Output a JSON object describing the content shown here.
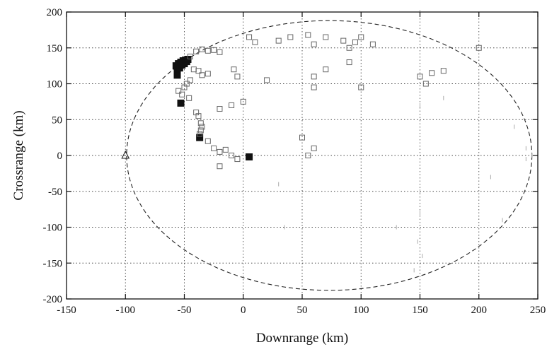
{
  "chart_data": {
    "type": "scatter",
    "xlabel": "Downrange (km)",
    "ylabel": "Crossrange (km)",
    "xlim": [
      -150,
      250
    ],
    "ylim": [
      -200,
      200
    ],
    "xticks": [
      "-150",
      "-100",
      "-50",
      "0",
      "50",
      "100",
      "150",
      "200",
      "250"
    ],
    "yticks": [
      "200",
      "150",
      "100",
      "50",
      "0",
      "-50",
      "-100",
      "-150",
      "-200"
    ],
    "grid": true,
    "boundary": {
      "shape": "dashed-ellipse",
      "center": [
        73,
        0
      ],
      "semi_axes": [
        172,
        188
      ]
    },
    "triangle_marker": {
      "x": -100,
      "y": 0
    },
    "series": [
      {
        "marker": "filled-square",
        "points": [
          [
            -57,
            125
          ],
          [
            -56,
            118
          ],
          [
            -56,
            112
          ],
          [
            -55,
            128
          ],
          [
            -54,
            122
          ],
          [
            -53,
            130
          ],
          [
            -52,
            126
          ],
          [
            -51,
            132
          ],
          [
            -50,
            128
          ],
          [
            -49,
            133
          ],
          [
            -48,
            131
          ],
          [
            -47,
            134
          ],
          [
            -53,
            73
          ],
          [
            -37,
            25
          ],
          [
            5,
            -2
          ]
        ]
      },
      {
        "marker": "open-square",
        "points": [
          [
            -40,
            145
          ],
          [
            -35,
            148
          ],
          [
            -30,
            146
          ],
          [
            -25,
            147
          ],
          [
            -20,
            144
          ],
          [
            -45,
            138
          ],
          [
            -42,
            120
          ],
          [
            -38,
            118
          ],
          [
            -35,
            112
          ],
          [
            -30,
            114
          ],
          [
            -45,
            105
          ],
          [
            -48,
            100
          ],
          [
            -50,
            95
          ],
          [
            -55,
            90
          ],
          [
            -52,
            85
          ],
          [
            -46,
            80
          ],
          [
            -40,
            60
          ],
          [
            -38,
            55
          ],
          [
            -36,
            45
          ],
          [
            -35,
            40
          ],
          [
            -36,
            35
          ],
          [
            -37,
            30
          ],
          [
            -30,
            20
          ],
          [
            -25,
            10
          ],
          [
            -20,
            5
          ],
          [
            -15,
            8
          ],
          [
            -10,
            0
          ],
          [
            -5,
            -5
          ],
          [
            -20,
            -15
          ],
          [
            -8,
            120
          ],
          [
            -5,
            110
          ],
          [
            5,
            165
          ],
          [
            10,
            158
          ],
          [
            30,
            160
          ],
          [
            40,
            165
          ],
          [
            55,
            168
          ],
          [
            60,
            155
          ],
          [
            70,
            165
          ],
          [
            85,
            160
          ],
          [
            90,
            150
          ],
          [
            95,
            158
          ],
          [
            100,
            165
          ],
          [
            110,
            155
          ],
          [
            60,
            110
          ],
          [
            70,
            120
          ],
          [
            90,
            130
          ],
          [
            60,
            95
          ],
          [
            100,
            95
          ],
          [
            150,
            110
          ],
          [
            160,
            115
          ],
          [
            170,
            118
          ],
          [
            155,
            100
          ],
          [
            -10,
            70
          ],
          [
            0,
            75
          ],
          [
            -20,
            65
          ],
          [
            20,
            105
          ],
          [
            50,
            25
          ],
          [
            55,
            0
          ],
          [
            60,
            10
          ],
          [
            200,
            150
          ]
        ]
      },
      {
        "marker": "faint-tick",
        "points": [
          [
            150,
            200
          ],
          [
            150,
            -50
          ],
          [
            150,
            -80
          ],
          [
            148,
            -120
          ],
          [
            152,
            -140
          ],
          [
            145,
            -160
          ],
          [
            240,
            10
          ],
          [
            245,
            0
          ],
          [
            240,
            -5
          ],
          [
            230,
            40
          ],
          [
            150,
            70
          ],
          [
            170,
            80
          ],
          [
            200,
            100
          ],
          [
            30,
            -40
          ],
          [
            35,
            -100
          ],
          [
            130,
            -100
          ],
          [
            220,
            -90
          ],
          [
            210,
            -30
          ]
        ]
      }
    ]
  }
}
